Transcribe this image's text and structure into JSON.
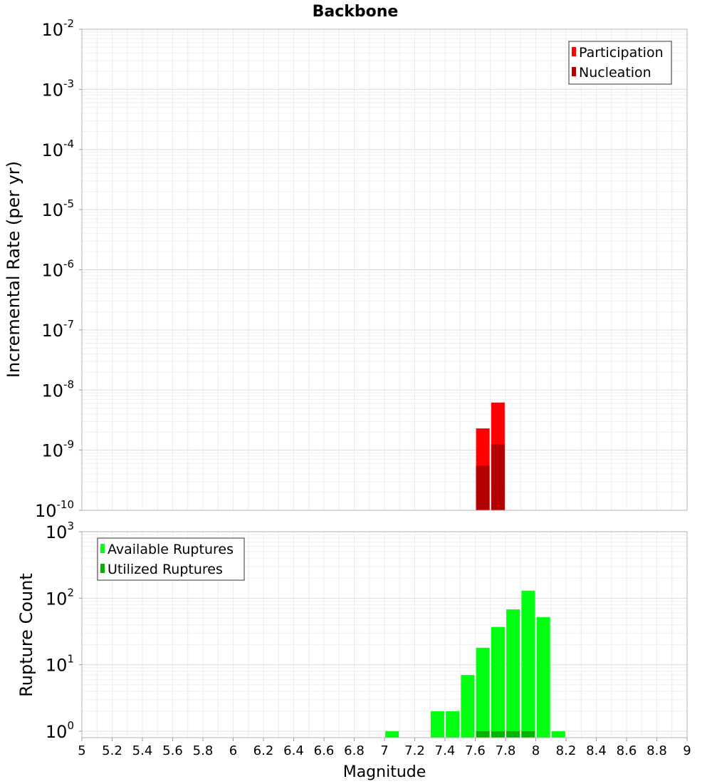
{
  "chart_data": [
    {
      "type": "bar",
      "title": "Backbone",
      "xlabel": "Magnitude",
      "ylabel": "Incremental Rate (per yr)",
      "yscale": "log",
      "ylim": [
        1e-10,
        0.01
      ],
      "xlim": [
        5,
        9
      ],
      "grid": true,
      "legend": "top-right",
      "y_ticks": [
        {
          "base": "10",
          "exp": "-10",
          "value": -10
        },
        {
          "base": "10",
          "exp": "-9",
          "value": -9
        },
        {
          "base": "10",
          "exp": "-8",
          "value": -8
        },
        {
          "base": "10",
          "exp": "-7",
          "value": -7
        },
        {
          "base": "10",
          "exp": "-6",
          "value": -6
        },
        {
          "base": "10",
          "exp": "-5",
          "value": -5
        },
        {
          "base": "10",
          "exp": "-4",
          "value": -4
        },
        {
          "base": "10",
          "exp": "-3",
          "value": -3
        },
        {
          "base": "10",
          "exp": "-2",
          "value": -2
        }
      ],
      "series": [
        {
          "name": "Participation",
          "color": "#ff0000",
          "x": [
            7.65,
            7.75
          ],
          "values": [
            2.3e-09,
            6.2e-09
          ]
        },
        {
          "name": "Nucleation",
          "color": "#b30000",
          "x": [
            7.65,
            7.75
          ],
          "values": [
            5.5e-10,
            1.25e-09
          ]
        }
      ]
    },
    {
      "type": "bar",
      "xlabel": "Magnitude",
      "ylabel": "Rupture Count",
      "yscale": "log",
      "ylim": [
        0.8,
        1000
      ],
      "xlim": [
        5,
        9
      ],
      "grid": true,
      "legend": "top-left",
      "y_ticks": [
        {
          "base": "10",
          "exp": "0",
          "value": 1
        },
        {
          "base": "10",
          "exp": "1",
          "value": 10
        },
        {
          "base": "10",
          "exp": "2",
          "value": 100
        },
        {
          "base": "10",
          "exp": "3",
          "value": 1000
        }
      ],
      "series": [
        {
          "name": "Available Ruptures",
          "color": "#00ff10",
          "x": [
            7.05,
            7.35,
            7.45,
            7.55,
            7.65,
            7.75,
            7.85,
            7.95,
            8.05,
            8.15
          ],
          "values": [
            1,
            2,
            2,
            7,
            18,
            37,
            68,
            130,
            52,
            1
          ]
        },
        {
          "name": "Utilized Ruptures",
          "color": "#00b300",
          "x": [
            7.65,
            7.75,
            7.85,
            7.95
          ],
          "values": [
            1,
            1,
            1,
            1
          ]
        }
      ]
    }
  ],
  "x_ticks": [
    "5",
    "5.2",
    "5.4",
    "5.6",
    "5.8",
    "6",
    "6.2",
    "6.4",
    "6.6",
    "6.8",
    "7",
    "7.2",
    "7.4",
    "7.6",
    "7.8",
    "8",
    "8.2",
    "8.4",
    "8.6",
    "8.8",
    "9"
  ]
}
